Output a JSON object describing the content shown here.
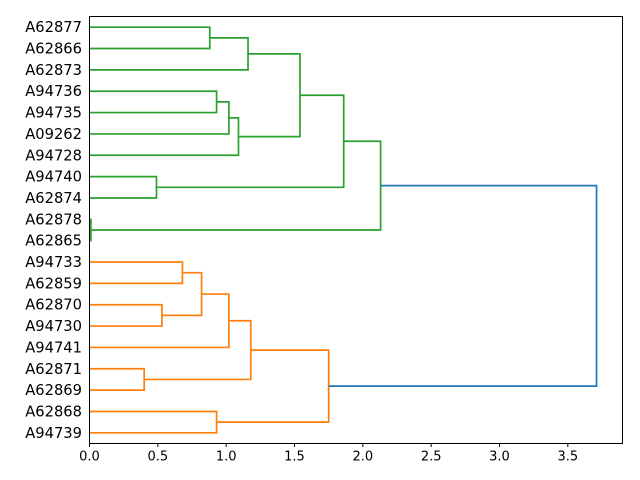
{
  "figure": {
    "background": "#ffffff",
    "title": ""
  },
  "chart_data": {
    "type": "dendrogram",
    "orientation": "horizontal-left-labels",
    "title": "",
    "xlabel": "",
    "ylabel": "",
    "grid": false,
    "legend": false,
    "xlim": [
      0,
      3.9
    ],
    "x_ticks": [
      0.0,
      0.5,
      1.0,
      1.5,
      2.0,
      2.5,
      3.0,
      3.5
    ],
    "x_tick_labels": [
      "0.0",
      "0.5",
      "1.0",
      "1.5",
      "2.0",
      "2.5",
      "3.0",
      "3.5"
    ],
    "leaves": [
      "A62877",
      "A62866",
      "A62873",
      "A94736",
      "A94735",
      "A09262",
      "A94728",
      "A94740",
      "A62874",
      "A62878",
      "A62865",
      "A94733",
      "A62859",
      "A62870",
      "A94730",
      "A94741",
      "A62871",
      "A62869",
      "A62868",
      "A94739"
    ],
    "links": [
      {
        "id": "g1",
        "children": [
          "A62877",
          "A62866"
        ],
        "distance": 0.88,
        "color_key": "cluster2"
      },
      {
        "id": "g2",
        "children": [
          "g1",
          "A62873"
        ],
        "distance": 1.16,
        "color_key": "cluster2"
      },
      {
        "id": "g3",
        "children": [
          "A94736",
          "A94735"
        ],
        "distance": 0.93,
        "color_key": "cluster2"
      },
      {
        "id": "g4",
        "children": [
          "g3",
          "A09262"
        ],
        "distance": 1.02,
        "color_key": "cluster2"
      },
      {
        "id": "g5",
        "children": [
          "g4",
          "A94728"
        ],
        "distance": 1.09,
        "color_key": "cluster2"
      },
      {
        "id": "g6",
        "children": [
          "g2",
          "g5"
        ],
        "distance": 1.54,
        "color_key": "cluster2"
      },
      {
        "id": "g7",
        "children": [
          "A94740",
          "A62874"
        ],
        "distance": 0.49,
        "color_key": "cluster2"
      },
      {
        "id": "g8",
        "children": [
          "g6",
          "g7"
        ],
        "distance": 1.86,
        "color_key": "cluster2"
      },
      {
        "id": "g9",
        "children": [
          "A62878",
          "A62865"
        ],
        "distance": 0.01,
        "color_key": "cluster2"
      },
      {
        "id": "g10",
        "children": [
          "g8",
          "g9"
        ],
        "distance": 2.13,
        "color_key": "cluster2"
      },
      {
        "id": "o1",
        "children": [
          "A94733",
          "A62859"
        ],
        "distance": 0.68,
        "color_key": "cluster1"
      },
      {
        "id": "o2",
        "children": [
          "A62870",
          "A94730"
        ],
        "distance": 0.53,
        "color_key": "cluster1"
      },
      {
        "id": "o3",
        "children": [
          "o1",
          "o2"
        ],
        "distance": 0.82,
        "color_key": "cluster1"
      },
      {
        "id": "o4",
        "children": [
          "o3",
          "A94741"
        ],
        "distance": 1.02,
        "color_key": "cluster1"
      },
      {
        "id": "o5",
        "children": [
          "A62871",
          "A62869"
        ],
        "distance": 0.4,
        "color_key": "cluster1"
      },
      {
        "id": "o6",
        "children": [
          "o4",
          "o5"
        ],
        "distance": 1.18,
        "color_key": "cluster1"
      },
      {
        "id": "o7",
        "children": [
          "A62868",
          "A94739"
        ],
        "distance": 0.93,
        "color_key": "cluster1"
      },
      {
        "id": "o8",
        "children": [
          "o6",
          "o7"
        ],
        "distance": 1.75,
        "color_key": "cluster1"
      },
      {
        "id": "root",
        "children": [
          "g10",
          "o8"
        ],
        "distance": 3.71,
        "color_key": "above_threshold"
      }
    ],
    "colors": {
      "cluster1": "#ff7f0e",
      "cluster2": "#2ca02c",
      "above_threshold": "#1f77b4",
      "axis": "#000000"
    }
  }
}
